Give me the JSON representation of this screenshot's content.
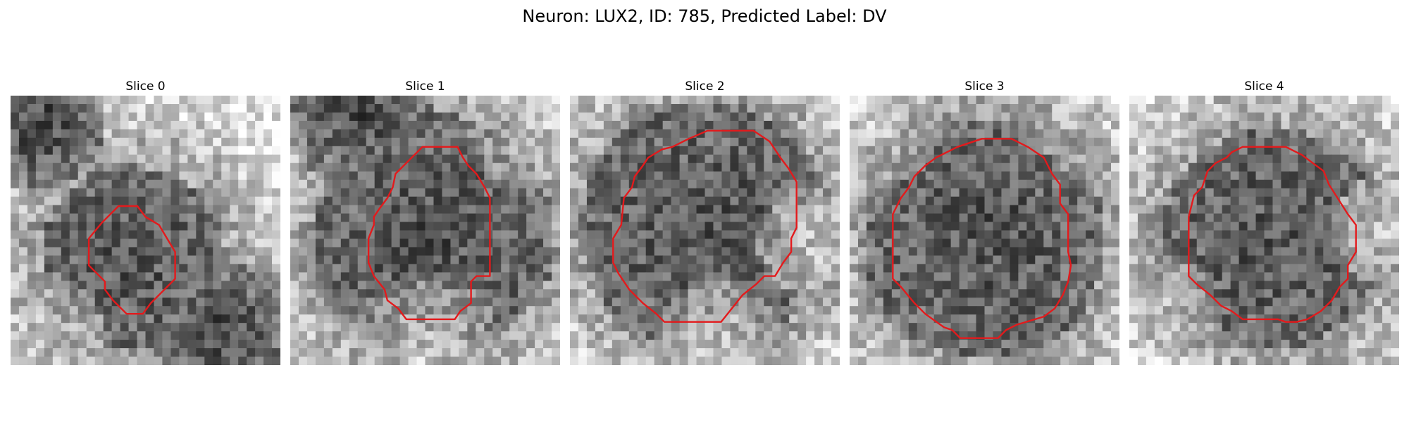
{
  "figure": {
    "title": "Neuron: LUX2, ID: 785, Predicted Label: DV"
  },
  "panels": [
    {
      "title": "Slice 0",
      "center": [
        0.45,
        0.6
      ],
      "blob_radius": 0.34,
      "bright_regions": [
        [
          0.8,
          0.1,
          0.28
        ],
        [
          0.1,
          0.9,
          0.25
        ]
      ],
      "dark_regions": [
        [
          0.1,
          0.1,
          0.25
        ],
        [
          0.8,
          0.9,
          0.3
        ]
      ],
      "contour": [
        [
          0.4,
          0.41
        ],
        [
          0.47,
          0.41
        ],
        [
          0.5,
          0.45
        ],
        [
          0.55,
          0.48
        ],
        [
          0.58,
          0.53
        ],
        [
          0.61,
          0.58
        ],
        [
          0.61,
          0.68
        ],
        [
          0.57,
          0.72
        ],
        [
          0.52,
          0.77
        ],
        [
          0.49,
          0.81
        ],
        [
          0.43,
          0.81
        ],
        [
          0.38,
          0.76
        ],
        [
          0.35,
          0.72
        ],
        [
          0.35,
          0.69
        ],
        [
          0.29,
          0.63
        ],
        [
          0.29,
          0.53
        ],
        [
          0.34,
          0.47
        ]
      ]
    },
    {
      "title": "Slice 1",
      "center": [
        0.53,
        0.52
      ],
      "blob_radius": 0.45,
      "bright_regions": [
        [
          0.95,
          0.1,
          0.3
        ],
        [
          0.5,
          0.98,
          0.3
        ]
      ],
      "dark_regions": [
        [
          0.25,
          0.05,
          0.28
        ]
      ],
      "contour": [
        [
          0.49,
          0.19
        ],
        [
          0.62,
          0.19
        ],
        [
          0.64,
          0.23
        ],
        [
          0.66,
          0.26
        ],
        [
          0.69,
          0.29
        ],
        [
          0.72,
          0.34
        ],
        [
          0.74,
          0.38
        ],
        [
          0.74,
          0.67
        ],
        [
          0.69,
          0.67
        ],
        [
          0.67,
          0.69
        ],
        [
          0.67,
          0.77
        ],
        [
          0.63,
          0.8
        ],
        [
          0.61,
          0.83
        ],
        [
          0.43,
          0.83
        ],
        [
          0.4,
          0.79
        ],
        [
          0.36,
          0.76
        ],
        [
          0.35,
          0.72
        ],
        [
          0.31,
          0.67
        ],
        [
          0.29,
          0.62
        ],
        [
          0.29,
          0.53
        ],
        [
          0.31,
          0.48
        ],
        [
          0.31,
          0.45
        ],
        [
          0.33,
          0.42
        ],
        [
          0.36,
          0.38
        ],
        [
          0.38,
          0.34
        ],
        [
          0.39,
          0.29
        ],
        [
          0.43,
          0.25
        ],
        [
          0.46,
          0.22
        ]
      ]
    },
    {
      "title": "Slice 2",
      "center": [
        0.5,
        0.48
      ],
      "blob_radius": 0.46,
      "bright_regions": [
        [
          0.95,
          0.55,
          0.25
        ],
        [
          0.55,
          0.95,
          0.25
        ]
      ],
      "dark_regions": [],
      "contour": [
        [
          0.51,
          0.13
        ],
        [
          0.68,
          0.13
        ],
        [
          0.74,
          0.17
        ],
        [
          0.78,
          0.23
        ],
        [
          0.81,
          0.27
        ],
        [
          0.84,
          0.32
        ],
        [
          0.84,
          0.49
        ],
        [
          0.82,
          0.53
        ],
        [
          0.82,
          0.58
        ],
        [
          0.79,
          0.62
        ],
        [
          0.76,
          0.67
        ],
        [
          0.72,
          0.67
        ],
        [
          0.69,
          0.7
        ],
        [
          0.64,
          0.74
        ],
        [
          0.6,
          0.79
        ],
        [
          0.56,
          0.84
        ],
        [
          0.35,
          0.84
        ],
        [
          0.32,
          0.81
        ],
        [
          0.27,
          0.77
        ],
        [
          0.22,
          0.72
        ],
        [
          0.18,
          0.66
        ],
        [
          0.16,
          0.62
        ],
        [
          0.16,
          0.53
        ],
        [
          0.19,
          0.48
        ],
        [
          0.2,
          0.38
        ],
        [
          0.23,
          0.34
        ],
        [
          0.24,
          0.3
        ],
        [
          0.27,
          0.26
        ],
        [
          0.29,
          0.23
        ],
        [
          0.34,
          0.2
        ],
        [
          0.38,
          0.19
        ],
        [
          0.44,
          0.16
        ]
      ]
    },
    {
      "title": "Slice 3",
      "center": [
        0.5,
        0.53
      ],
      "blob_radius": 0.45,
      "bright_regions": [
        [
          0.95,
          0.1,
          0.25
        ],
        [
          0.1,
          0.1,
          0.25
        ]
      ],
      "dark_regions": [],
      "contour": [
        [
          0.4,
          0.19
        ],
        [
          0.49,
          0.16
        ],
        [
          0.6,
          0.16
        ],
        [
          0.66,
          0.19
        ],
        [
          0.72,
          0.23
        ],
        [
          0.75,
          0.29
        ],
        [
          0.78,
          0.33
        ],
        [
          0.78,
          0.4
        ],
        [
          0.81,
          0.44
        ],
        [
          0.81,
          0.58
        ],
        [
          0.82,
          0.63
        ],
        [
          0.81,
          0.69
        ],
        [
          0.79,
          0.74
        ],
        [
          0.76,
          0.79
        ],
        [
          0.72,
          0.82
        ],
        [
          0.62,
          0.85
        ],
        [
          0.58,
          0.87
        ],
        [
          0.55,
          0.9
        ],
        [
          0.41,
          0.9
        ],
        [
          0.38,
          0.87
        ],
        [
          0.35,
          0.86
        ],
        [
          0.28,
          0.81
        ],
        [
          0.24,
          0.77
        ],
        [
          0.19,
          0.71
        ],
        [
          0.16,
          0.68
        ],
        [
          0.16,
          0.44
        ],
        [
          0.19,
          0.38
        ],
        [
          0.22,
          0.34
        ],
        [
          0.24,
          0.3
        ],
        [
          0.28,
          0.26
        ],
        [
          0.32,
          0.23
        ],
        [
          0.36,
          0.21
        ]
      ]
    },
    {
      "title": "Slice 4",
      "center": [
        0.53,
        0.53
      ],
      "blob_radius": 0.41,
      "bright_regions": [
        [
          0.1,
          0.85,
          0.25
        ],
        [
          0.95,
          0.5,
          0.2
        ]
      ],
      "dark_regions": [],
      "contour": [
        [
          0.42,
          0.19
        ],
        [
          0.58,
          0.19
        ],
        [
          0.64,
          0.22
        ],
        [
          0.68,
          0.25
        ],
        [
          0.72,
          0.28
        ],
        [
          0.74,
          0.33
        ],
        [
          0.81,
          0.44
        ],
        [
          0.84,
          0.48
        ],
        [
          0.84,
          0.58
        ],
        [
          0.81,
          0.63
        ],
        [
          0.81,
          0.68
        ],
        [
          0.78,
          0.71
        ],
        [
          0.75,
          0.76
        ],
        [
          0.71,
          0.8
        ],
        [
          0.66,
          0.83
        ],
        [
          0.62,
          0.84
        ],
        [
          0.58,
          0.84
        ],
        [
          0.55,
          0.83
        ],
        [
          0.42,
          0.83
        ],
        [
          0.38,
          0.8
        ],
        [
          0.34,
          0.78
        ],
        [
          0.3,
          0.74
        ],
        [
          0.25,
          0.7
        ],
        [
          0.22,
          0.67
        ],
        [
          0.22,
          0.45
        ],
        [
          0.24,
          0.37
        ],
        [
          0.27,
          0.34
        ],
        [
          0.29,
          0.28
        ],
        [
          0.32,
          0.25
        ],
        [
          0.36,
          0.23
        ],
        [
          0.38,
          0.21
        ]
      ]
    }
  ],
  "colors": {
    "contour": "#e31a1c",
    "background": "#ffffff"
  }
}
